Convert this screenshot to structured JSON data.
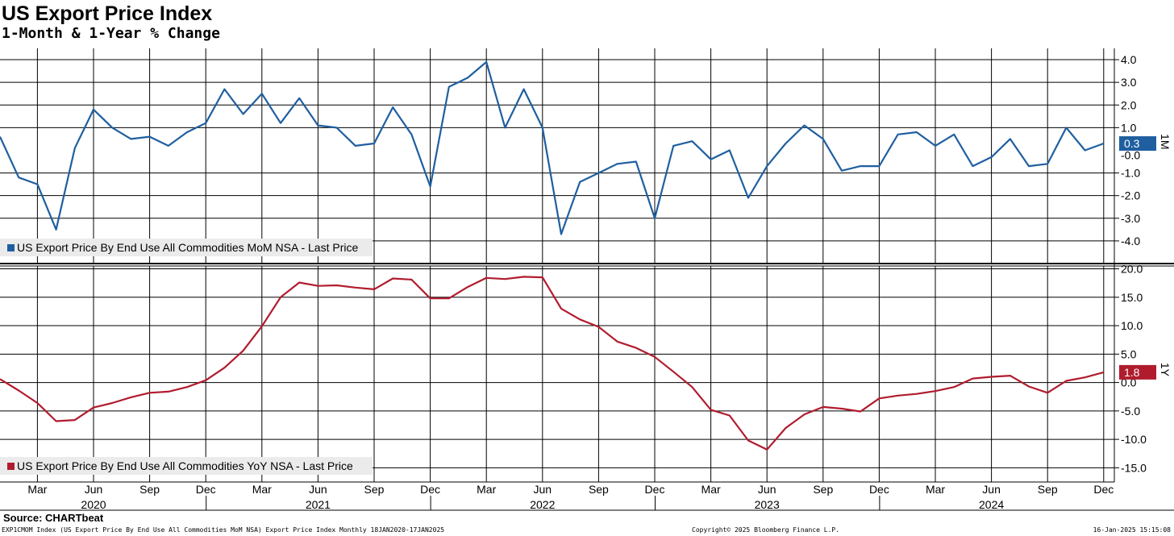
{
  "title": "US Export Price Index",
  "subtitle": "1-Month & 1-Year % Change",
  "source": "Source: CHARTbeat",
  "footer": {
    "left": "EXP1CMOM Index (US Export Price By End Use All Commodities MoM NSA) Export Price Index  Monthly 18JAN2020-17JAN2025",
    "center": "Copyright© 2025 Bloomberg Finance L.P.",
    "right": "16-Jan-2025 15:15:08"
  },
  "colors": {
    "mom": "#1f5fa0",
    "yoy": "#b01c2e",
    "grid": "#000000"
  },
  "chart_data": [
    {
      "type": "line",
      "name": "US Export Price By End Use All Commodities MoM NSA - Last Price",
      "legend": "US Export Price By End Use All Commodities MoM NSA - Last Price",
      "axis_label": "1M",
      "last_value_label": "0.3",
      "ylim": [
        -5,
        4.5
      ],
      "yticks": [
        4.0,
        3.0,
        2.0,
        1.0,
        -1.0,
        -2.0,
        -3.0,
        -4.0
      ],
      "ytick_labels": [
        "4.0",
        "3.0",
        "2.0",
        "1.0",
        "-1.0",
        "-2.0",
        "-3.0",
        "-4.0"
      ],
      "partial_tick_labels": [
        "-0.0"
      ],
      "x": [
        "2020-01",
        "2020-02",
        "2020-03",
        "2020-04",
        "2020-05",
        "2020-06",
        "2020-07",
        "2020-08",
        "2020-09",
        "2020-10",
        "2020-11",
        "2020-12",
        "2021-01",
        "2021-02",
        "2021-03",
        "2021-04",
        "2021-05",
        "2021-06",
        "2021-07",
        "2021-08",
        "2021-09",
        "2021-10",
        "2021-11",
        "2021-12",
        "2022-01",
        "2022-02",
        "2022-03",
        "2022-04",
        "2022-05",
        "2022-06",
        "2022-07",
        "2022-08",
        "2022-09",
        "2022-10",
        "2022-11",
        "2022-12",
        "2023-01",
        "2023-02",
        "2023-03",
        "2023-04",
        "2023-05",
        "2023-06",
        "2023-07",
        "2023-08",
        "2023-09",
        "2023-10",
        "2023-11",
        "2023-12",
        "2024-01",
        "2024-02",
        "2024-03",
        "2024-04",
        "2024-05",
        "2024-06",
        "2024-07",
        "2024-08",
        "2024-09",
        "2024-10",
        "2024-11",
        "2024-12"
      ],
      "values": [
        0.6,
        -1.2,
        -1.5,
        -3.5,
        0.1,
        1.8,
        1.0,
        0.5,
        0.6,
        0.2,
        0.8,
        1.2,
        2.7,
        1.6,
        2.5,
        1.2,
        2.3,
        1.1,
        1.0,
        0.2,
        0.3,
        1.9,
        0.7,
        -1.6,
        2.8,
        3.2,
        3.9,
        1.0,
        2.7,
        1.0,
        -3.7,
        -1.4,
        -1.0,
        -0.6,
        -0.5,
        -3.0,
        0.2,
        0.4,
        -0.4,
        -0.0,
        -2.1,
        -0.7,
        0.3,
        1.1,
        0.5,
        -0.9,
        -0.7,
        -0.7,
        0.7,
        0.8,
        0.2,
        0.7,
        -0.7,
        -0.3,
        0.5,
        -0.7,
        -0.6,
        1.0,
        0.0,
        0.3
      ]
    },
    {
      "type": "line",
      "name": "US Export Price By End Use All Commodities YoY NSA - Last Price",
      "legend": "US Export Price By End Use All Commodities YoY NSA - Last Price",
      "axis_label": "1Y",
      "last_value_label": "1.8",
      "ylim": [
        -17.5,
        20.5
      ],
      "yticks": [
        20.0,
        15.0,
        10.0,
        5.0,
        0.0,
        -5.0,
        -10.0,
        -15.0
      ],
      "ytick_labels": [
        "20.0",
        "15.0",
        "10.0",
        "5.0",
        "0.0",
        "-5.0",
        "-10.0",
        "-15.0"
      ],
      "x": [
        "2020-01",
        "2020-02",
        "2020-03",
        "2020-04",
        "2020-05",
        "2020-06",
        "2020-07",
        "2020-08",
        "2020-09",
        "2020-10",
        "2020-11",
        "2020-12",
        "2021-01",
        "2021-02",
        "2021-03",
        "2021-04",
        "2021-05",
        "2021-06",
        "2021-07",
        "2021-08",
        "2021-09",
        "2021-10",
        "2021-11",
        "2021-12",
        "2022-01",
        "2022-02",
        "2022-03",
        "2022-04",
        "2022-05",
        "2022-06",
        "2022-07",
        "2022-08",
        "2022-09",
        "2022-10",
        "2022-11",
        "2022-12",
        "2023-01",
        "2023-02",
        "2023-03",
        "2023-04",
        "2023-05",
        "2023-06",
        "2023-07",
        "2023-08",
        "2023-09",
        "2023-10",
        "2023-11",
        "2023-12",
        "2024-01",
        "2024-02",
        "2024-03",
        "2024-04",
        "2024-05",
        "2024-06",
        "2024-07",
        "2024-08",
        "2024-09",
        "2024-10",
        "2024-11",
        "2024-12"
      ],
      "values": [
        0.6,
        -1.4,
        -3.6,
        -6.8,
        -6.6,
        -4.4,
        -3.6,
        -2.6,
        -1.8,
        -1.6,
        -0.8,
        0.4,
        2.6,
        5.6,
        9.9,
        15.0,
        17.6,
        17.0,
        17.1,
        16.7,
        16.4,
        18.3,
        18.1,
        14.8,
        14.8,
        16.8,
        18.4,
        18.2,
        18.6,
        18.5,
        13.0,
        11.1,
        9.8,
        7.2,
        6.1,
        4.5,
        1.9,
        -0.8,
        -4.8,
        -5.8,
        -10.2,
        -11.8,
        -8.0,
        -5.6,
        -4.3,
        -4.6,
        -5.1,
        -2.8,
        -2.3,
        -2.0,
        -1.5,
        -0.8,
        0.7,
        1.0,
        1.2,
        -0.7,
        -1.8,
        0.3,
        0.9,
        1.8
      ]
    }
  ],
  "x_axis": {
    "month_labels": [
      "Mar",
      "Jun",
      "Sep",
      "Dec",
      "Mar",
      "Jun",
      "Sep",
      "Dec",
      "Mar",
      "Jun",
      "Sep",
      "Dec",
      "Mar",
      "Jun",
      "Sep",
      "Dec",
      "Mar",
      "Jun",
      "Sep",
      "Dec"
    ],
    "month_label_x": [
      "2020-03",
      "2020-06",
      "2020-09",
      "2020-12",
      "2021-03",
      "2021-06",
      "2021-09",
      "2021-12",
      "2022-03",
      "2022-06",
      "2022-09",
      "2022-12",
      "2023-03",
      "2023-06",
      "2023-09",
      "2023-12",
      "2024-03",
      "2024-06",
      "2024-09",
      "2024-12"
    ],
    "year_labels": [
      "2020",
      "2021",
      "2022",
      "2023",
      "2024"
    ],
    "year_label_x": [
      "2020-06",
      "2021-06",
      "2022-06",
      "2023-06",
      "2024-06"
    ]
  }
}
